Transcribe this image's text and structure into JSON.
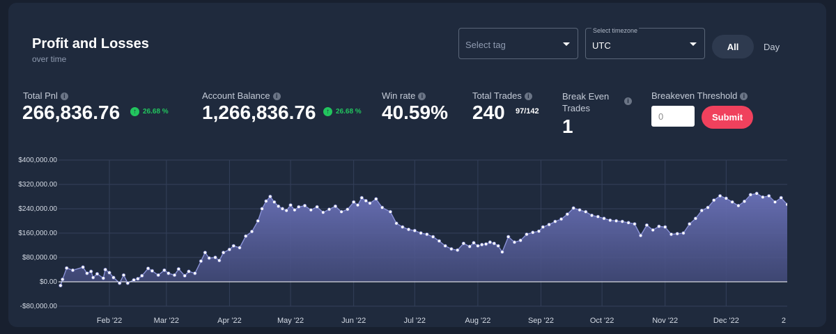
{
  "header": {
    "title": "Profit and Losses",
    "subtitle": "over time"
  },
  "controls": {
    "tag_placeholder": "Select tag",
    "timezone_label": "Select timezone",
    "timezone_value": "UTC",
    "range_all": "All",
    "range_day": "Day"
  },
  "stats": {
    "total_pnl": {
      "label": "Total Pnl",
      "value": "266,836.76",
      "change": "26.68 %"
    },
    "account_balance": {
      "label": "Account Balance",
      "value": "1,266,836.76",
      "change": "26.68 %"
    },
    "win_rate": {
      "label": "Win rate",
      "value": "40.59%"
    },
    "total_trades": {
      "label": "Total Trades",
      "value": "240",
      "sub": "97/142"
    },
    "break_even": {
      "label_line1": "Break Even",
      "label_line2": "Trades",
      "value": "1"
    },
    "threshold": {
      "label": "Breakeven Threshold",
      "placeholder": "0",
      "submit": "Submit"
    }
  },
  "colors": {
    "accent": "#f0415d",
    "positive": "#22c55e",
    "line": "#8b93d8",
    "fill": "#5c63a8"
  },
  "chart_data": {
    "type": "area",
    "ylim": [
      -80000,
      400000
    ],
    "yticks": [
      -80000,
      0,
      80000,
      160000,
      240000,
      320000,
      400000
    ],
    "ytick_labels": [
      "-$80,000.00",
      "$0.00",
      "$80,000.00",
      "$160,000.00",
      "$240,000.00",
      "$320,000.00",
      "$400,000.00"
    ],
    "xlim": [
      "2022-01-07",
      "2022-12-31"
    ],
    "xticks": [
      "2022-02-01",
      "2022-03-01",
      "2022-04-01",
      "2022-05-01",
      "2022-06-01",
      "2022-07-01",
      "2022-08-01",
      "2022-09-01",
      "2022-10-01",
      "2022-11-01",
      "2022-12-01",
      "2023-01-01"
    ],
    "xtick_labels": [
      "Feb '22",
      "Mar '22",
      "Apr '22",
      "May '22",
      "Jun '22",
      "Jul '22",
      "Aug '22",
      "Sep '22",
      "Oct '22",
      "Nov '22",
      "Dec '22",
      "2"
    ],
    "grid": true,
    "legend": false,
    "x": [
      "2022-01-08",
      "2022-01-09",
      "2022-01-11",
      "2022-01-14",
      "2022-01-19",
      "2022-01-21",
      "2022-01-23",
      "2022-01-24",
      "2022-01-26",
      "2022-01-29",
      "2022-01-30",
      "2022-02-01",
      "2022-02-03",
      "2022-02-06",
      "2022-02-08",
      "2022-02-10",
      "2022-02-13",
      "2022-02-15",
      "2022-02-17",
      "2022-02-20",
      "2022-02-22",
      "2022-02-25",
      "2022-02-28",
      "2022-03-02",
      "2022-03-05",
      "2022-03-07",
      "2022-03-10",
      "2022-03-12",
      "2022-03-15",
      "2022-03-18",
      "2022-03-20",
      "2022-03-22",
      "2022-03-25",
      "2022-03-27",
      "2022-03-29",
      "2022-04-01",
      "2022-04-03",
      "2022-04-06",
      "2022-04-09",
      "2022-04-12",
      "2022-04-15",
      "2022-04-17",
      "2022-04-19",
      "2022-04-21",
      "2022-04-23",
      "2022-04-25",
      "2022-04-27",
      "2022-04-29",
      "2022-05-01",
      "2022-05-03",
      "2022-05-05",
      "2022-05-08",
      "2022-05-11",
      "2022-05-14",
      "2022-05-17",
      "2022-05-20",
      "2022-05-23",
      "2022-05-26",
      "2022-05-29",
      "2022-06-01",
      "2022-06-03",
      "2022-06-05",
      "2022-06-07",
      "2022-06-09",
      "2022-06-12",
      "2022-06-15",
      "2022-06-19",
      "2022-06-22",
      "2022-06-25",
      "2022-06-28",
      "2022-07-01",
      "2022-07-04",
      "2022-07-07",
      "2022-07-10",
      "2022-07-13",
      "2022-07-16",
      "2022-07-19",
      "2022-07-22",
      "2022-07-25",
      "2022-07-28",
      "2022-07-30",
      "2022-08-01",
      "2022-08-03",
      "2022-08-05",
      "2022-08-07",
      "2022-08-09",
      "2022-08-11",
      "2022-08-13",
      "2022-08-16",
      "2022-08-19",
      "2022-08-22",
      "2022-08-25",
      "2022-08-28",
      "2022-08-31",
      "2022-09-02",
      "2022-09-05",
      "2022-09-08",
      "2022-09-11",
      "2022-09-14",
      "2022-09-17",
      "2022-09-20",
      "2022-09-23",
      "2022-09-26",
      "2022-09-29",
      "2022-10-02",
      "2022-10-05",
      "2022-10-08",
      "2022-10-11",
      "2022-10-14",
      "2022-10-17",
      "2022-10-20",
      "2022-10-23",
      "2022-10-26",
      "2022-10-29",
      "2022-11-01",
      "2022-11-04",
      "2022-11-07",
      "2022-11-10",
      "2022-11-13",
      "2022-11-16",
      "2022-11-19",
      "2022-11-22",
      "2022-11-25",
      "2022-11-28",
      "2022-12-01",
      "2022-12-04",
      "2022-12-07",
      "2022-12-10",
      "2022-12-13",
      "2022-12-16",
      "2022-12-19",
      "2022-12-22",
      "2022-12-25",
      "2022-12-28",
      "2022-12-31"
    ],
    "y": [
      -12000,
      8000,
      45000,
      38000,
      48000,
      28000,
      34000,
      14000,
      26000,
      12000,
      40000,
      30000,
      14000,
      -4000,
      22000,
      -4000,
      6000,
      10000,
      20000,
      44000,
      36000,
      22000,
      38000,
      28000,
      22000,
      42000,
      20000,
      34000,
      28000,
      68000,
      96000,
      78000,
      80000,
      70000,
      96000,
      106000,
      118000,
      112000,
      150000,
      165000,
      200000,
      240000,
      265000,
      280000,
      262000,
      248000,
      240000,
      234000,
      252000,
      236000,
      246000,
      250000,
      236000,
      246000,
      228000,
      238000,
      248000,
      230000,
      238000,
      262000,
      252000,
      276000,
      266000,
      258000,
      272000,
      244000,
      230000,
      192000,
      180000,
      172000,
      168000,
      160000,
      156000,
      148000,
      134000,
      118000,
      108000,
      104000,
      126000,
      116000,
      128000,
      118000,
      122000,
      124000,
      130000,
      126000,
      118000,
      98000,
      148000,
      130000,
      136000,
      156000,
      162000,
      166000,
      180000,
      188000,
      198000,
      206000,
      222000,
      242000,
      236000,
      230000,
      218000,
      214000,
      208000,
      202000,
      200000,
      198000,
      194000,
      190000,
      152000,
      186000,
      170000,
      182000,
      180000,
      156000,
      158000,
      160000,
      190000,
      208000,
      234000,
      244000,
      268000,
      282000,
      274000,
      262000,
      250000,
      264000,
      286000,
      290000,
      278000,
      282000,
      262000,
      276000,
      254000
    ]
  }
}
